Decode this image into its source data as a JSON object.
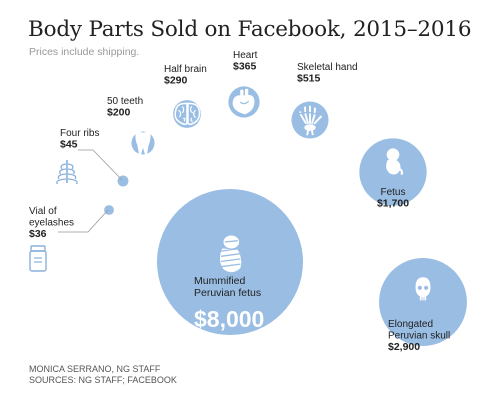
{
  "title": "Body Parts Sold on Facebook, 2015–2016",
  "subtitle": "Prices include shipping.",
  "credit": "MONICA SERRANO, NG STAFF",
  "sources": "SOURCES: NG STAFF; FACEBOOK",
  "colors": {
    "bubble": "#99bde3",
    "icon": "#ffffff",
    "outline_icon": "#88b0dc",
    "text": "#222222",
    "leader": "#999999"
  },
  "chart_data": {
    "type": "bubble",
    "title": "Body Parts Sold on Facebook, 2015–2016",
    "subtitle": "Prices include shipping.",
    "unit": "USD",
    "items": [
      {
        "name": "Vial of eyelashes",
        "lines": [
          "Vial of",
          "eyelashes"
        ],
        "price": 36,
        "price_label": "$36",
        "icon": "vial-icon"
      },
      {
        "name": "Four ribs",
        "lines": [
          "Four ribs"
        ],
        "price": 45,
        "price_label": "$45",
        "icon": "ribcage-icon"
      },
      {
        "name": "50 teeth",
        "lines": [
          "50 teeth"
        ],
        "price": 200,
        "price_label": "$200",
        "icon": "tooth-icon"
      },
      {
        "name": "Half brain",
        "lines": [
          "Half brain"
        ],
        "price": 290,
        "price_label": "$290",
        "icon": "brain-icon"
      },
      {
        "name": "Heart",
        "lines": [
          "Heart"
        ],
        "price": 365,
        "price_label": "$365",
        "icon": "heart-icon"
      },
      {
        "name": "Skeletal hand",
        "lines": [
          "Skeletal hand"
        ],
        "price": 515,
        "price_label": "$515",
        "icon": "hand-bones-icon"
      },
      {
        "name": "Fetus",
        "lines": [
          "Fetus"
        ],
        "price": 1700,
        "price_label": "$1,700",
        "icon": "fetus-icon"
      },
      {
        "name": "Mummified Peruvian fetus",
        "lines": [
          "Mummified",
          "Peruvian fetus"
        ],
        "price": 8000,
        "price_label": "$8,000",
        "icon": "mummy-icon"
      },
      {
        "name": "Elongated Peruvian skull",
        "lines": [
          "Elongated",
          "Peruvian skull"
        ],
        "price": 2900,
        "price_label": "$2,900",
        "icon": "skull-icon"
      }
    ]
  }
}
